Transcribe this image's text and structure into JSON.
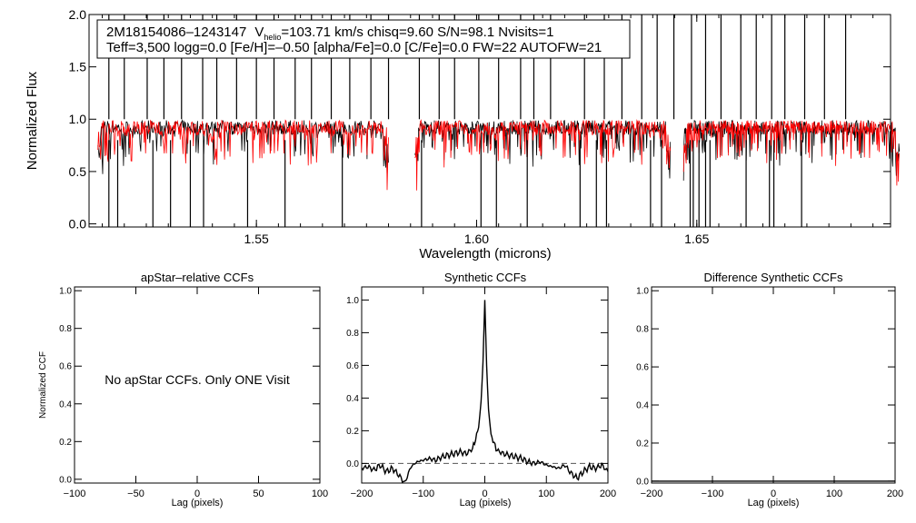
{
  "chart_data": [
    {
      "type": "line",
      "info_line1": {
        "star": "2M18154086–1243147",
        "v_prefix": "V",
        "v_sub": "helio",
        "v_rest": "=103.71 km/s  chisq=9.60  S/N=98.1  Nvisits=1"
      },
      "info_line2": "Teff=3,500 logg=0.0 [Fe/H]=–0.50 [alpha/Fe]=0.0 [C/Fe]=0.0 FW=22 AUTOFW=21",
      "xlabel": "Wavelength (microns)",
      "ylabel": "Normalized Flux",
      "xlim": [
        1.512,
        1.694
      ],
      "ylim": [
        -0.03,
        2.0
      ],
      "x_ticks": [
        1.55,
        1.6,
        1.65
      ],
      "x_tick_labels": [
        "1.55",
        "1.60",
        "1.65"
      ],
      "y_ticks": [
        0.0,
        0.5,
        1.0,
        1.5,
        2.0
      ],
      "y_tick_labels": [
        "0.0",
        "0.5",
        "1.0",
        "1.5",
        "2.0"
      ],
      "chips": [
        [
          1.514,
          1.58
        ],
        [
          1.586,
          1.644
        ],
        [
          1.647,
          1.696
        ]
      ],
      "series": [
        {
          "name": "observed",
          "color": "#000000",
          "baseline": 0.92
        },
        {
          "name": "model",
          "color": "#ff0000",
          "baseline": 0.92
        }
      ],
      "spikes_up": [
        1.5165,
        1.52,
        1.5252,
        1.529,
        1.533,
        1.5378,
        1.541,
        1.5455,
        1.55,
        1.554,
        1.5588,
        1.5625,
        1.567,
        1.5712,
        1.576,
        1.58,
        1.587,
        1.5915,
        1.595,
        1.6005,
        1.605,
        1.61,
        1.613,
        1.6168,
        1.6245,
        1.629,
        1.633,
        1.6375,
        1.641,
        1.6448,
        1.6488,
        1.652,
        1.6555,
        1.66,
        1.6635,
        1.667,
        1.67,
        1.6745,
        1.679,
        1.6838
      ],
      "spikes_down": [
        1.5165,
        1.5185,
        1.5265,
        1.5305,
        1.535,
        1.538,
        1.548,
        1.5565,
        1.5695,
        1.5875,
        1.601,
        1.6045,
        1.6115,
        1.6235,
        1.6272,
        1.6295,
        1.6395,
        1.642,
        1.6485,
        1.6492,
        1.6505,
        1.652,
        1.653,
        1.6612,
        1.6665,
        1.6675,
        1.6738
      ]
    },
    {
      "type": "line",
      "title": "apStar–relative CCFs",
      "xlabel": "Lag (pixels)",
      "ylabel": "Normalized CCF",
      "xlim": [
        -100,
        100
      ],
      "ylim": [
        -0.02,
        1.02
      ],
      "x_ticks": [
        -100,
        -50,
        0,
        50,
        100
      ],
      "x_tick_labels": [
        "−100",
        "−50",
        "0",
        "50",
        "100"
      ],
      "y_ticks": [
        0.0,
        0.2,
        0.4,
        0.6,
        0.8,
        1.0
      ],
      "y_tick_labels": [
        "0.0",
        "0.2",
        "0.4",
        "0.6",
        "0.8",
        "1.0"
      ],
      "note": "No apStar CCFs.  Only ONE Visit"
    },
    {
      "type": "line",
      "title": "Synthetic CCFs",
      "xlabel": "Lag (pixels)",
      "xlim": [
        -200,
        200
      ],
      "ylim": [
        -0.12,
        1.08
      ],
      "x_ticks": [
        -200,
        -100,
        0,
        100,
        200
      ],
      "x_tick_labels": [
        "−200",
        "−100",
        "0",
        "100",
        "200"
      ],
      "y_ticks": [
        0.0,
        0.2,
        0.4,
        0.6,
        0.8,
        1.0
      ],
      "y_tick_labels": [
        "0.0",
        "0.2",
        "0.4",
        "0.6",
        "0.8",
        "1.0"
      ],
      "reference_y": 0.0,
      "series": [
        {
          "name": "ccf",
          "color": "#000000",
          "x": [
            -200,
            -190,
            -180,
            -170,
            -160,
            -150,
            -140,
            -130,
            -120,
            -110,
            -100,
            -90,
            -80,
            -70,
            -60,
            -50,
            -40,
            -30,
            -20,
            -15,
            -10,
            -6,
            -3,
            0,
            3,
            6,
            10,
            15,
            20,
            30,
            40,
            50,
            60,
            70,
            80,
            90,
            100,
            110,
            120,
            130,
            140,
            150,
            160,
            170,
            180,
            190,
            200
          ],
          "y": [
            -0.03,
            -0.02,
            -0.04,
            -0.01,
            -0.05,
            -0.03,
            -0.07,
            -0.12,
            -0.02,
            0.01,
            0.02,
            0.03,
            0.02,
            0.04,
            0.05,
            0.06,
            0.07,
            0.06,
            0.09,
            0.15,
            0.22,
            0.38,
            0.62,
            1.0,
            0.6,
            0.33,
            0.18,
            0.12,
            0.08,
            0.06,
            0.05,
            0.04,
            0.03,
            0.01,
            0.0,
            0.01,
            -0.01,
            -0.02,
            -0.03,
            -0.01,
            -0.06,
            -0.09,
            -0.05,
            -0.02,
            -0.03,
            -0.01,
            -0.05
          ]
        }
      ]
    },
    {
      "type": "line",
      "title": "Difference Synthetic CCFs",
      "xlabel": "Lag (pixels)",
      "xlim": [
        -200,
        200
      ],
      "ylim": [
        -0.01,
        1.02
      ],
      "x_ticks": [
        -200,
        -100,
        0,
        100,
        200
      ],
      "x_tick_labels": [
        "−200",
        "−100",
        "0",
        "100",
        "200"
      ],
      "y_ticks": [
        0.0,
        0.2,
        0.4,
        0.6,
        0.8,
        1.0
      ],
      "y_tick_labels": [
        "0.0",
        "0.2",
        "0.4",
        "0.6",
        "0.8",
        "1.0"
      ]
    }
  ]
}
